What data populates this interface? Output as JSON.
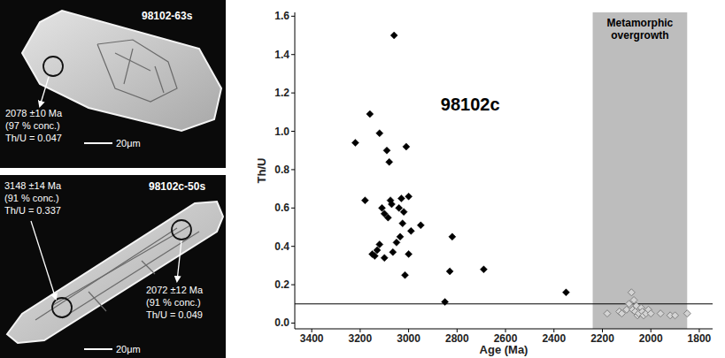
{
  "chart_data": {
    "type": "scatter",
    "x_label": "Age (Ma)",
    "y_label": "Th/U",
    "xlim": [
      3470,
      1745
    ],
    "ylim": [
      -0.03,
      1.62
    ],
    "xticks": [
      3400,
      3200,
      3000,
      2800,
      2600,
      2400,
      2200,
      2000,
      1800
    ],
    "yticks": [
      {
        "value": 0,
        "label": "0.0"
      },
      0.2,
      0.4,
      0.6,
      0.8,
      {
        "value": 1,
        "label": "1.0"
      },
      1.2,
      1.4,
      1.6
    ],
    "grid": false,
    "series": [
      {
        "color": "#000000",
        "marker": "diamond",
        "x": [
          3220,
          3180,
          3160,
          3140,
          3130,
          3120,
          3110,
          3100,
          3090,
          3085,
          3080,
          3075,
          3065,
          3060,
          3050,
          3040,
          3035,
          3030,
          3025,
          3020,
          3015,
          3010,
          3000,
          2990,
          2950,
          3120,
          3150,
          3100,
          2820,
          2830,
          2850,
          2690,
          2350,
          3070,
          3000
        ],
        "values": [
          0.94,
          0.64,
          1.09,
          0.35,
          0.38,
          0.99,
          0.6,
          0.57,
          0.9,
          0.55,
          0.84,
          0.64,
          0.37,
          1.5,
          0.42,
          0.6,
          0.45,
          0.65,
          0.52,
          0.58,
          0.25,
          0.92,
          0.36,
          0.48,
          0.51,
          0.41,
          0.36,
          0.34,
          0.45,
          0.27,
          0.11,
          0.28,
          0.16,
          0.62,
          0.66
        ]
      },
      {
        "color": "#808080",
        "marker": "open_diamond",
        "x": [
          2180,
          2130,
          2120,
          2100,
          2090,
          2080,
          2075,
          2070,
          2065,
          2060,
          2055,
          2050,
          2040,
          2035,
          2030,
          2020,
          2010,
          2000,
          1960,
          1920,
          1900,
          1850
        ],
        "values": [
          0.05,
          0.06,
          0.05,
          0.07,
          0.1,
          0.16,
          0.07,
          0.12,
          0.06,
          0.09,
          0.04,
          0.05,
          0.08,
          0.06,
          0.04,
          0.05,
          0.07,
          0.05,
          0.05,
          0.04,
          0.04,
          0.05
        ]
      }
    ],
    "annotations": [
      {
        "type": "band",
        "x": [
          2240,
          1850
        ],
        "text": "Metamorphic overgrowth",
        "color": "#bdbdbd"
      },
      {
        "type": "hline",
        "y": 0.1,
        "color": "#000000"
      },
      {
        "type": "text",
        "text": "98102c"
      }
    ]
  },
  "images": [
    {
      "label": "98102-63s",
      "scale_bar": "20μm",
      "spots": [
        {
          "lines": [
            "2078 ±10 Ma",
            "(97 % conc.)",
            "Th/U = 0.047"
          ]
        }
      ]
    },
    {
      "label": "98102c-50s",
      "scale_bar": "20μm",
      "spots": [
        {
          "lines": [
            "3148 ±14 Ma",
            "(91 % conc.)",
            "Th/U = 0.337"
          ]
        },
        {
          "lines": [
            "2072 ±12 Ma",
            "(91 % conc.)",
            "Th/U = 0.049"
          ]
        }
      ]
    }
  ]
}
